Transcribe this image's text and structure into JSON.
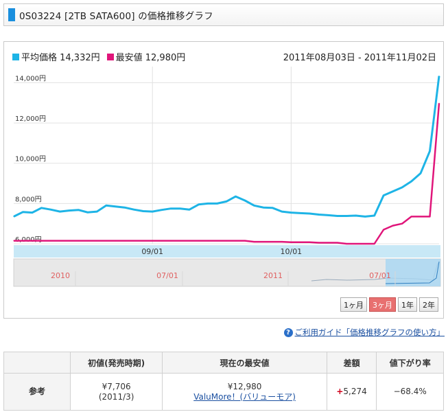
{
  "header": {
    "title": "0S03224 [2TB SATA600] の価格推移グラフ"
  },
  "legend": {
    "avg_label": "平均価格 14,332円",
    "min_label": "最安値 12,980円",
    "date_range": "2011年08月03日 - 2011年11月02日"
  },
  "colors": {
    "avg": "#1eb4e6",
    "min": "#e0157a",
    "accent": "#1a8fde",
    "active_button": "#e87070"
  },
  "chart_data": {
    "type": "line",
    "title": "",
    "xlabel": "",
    "ylabel": "",
    "x_ticks": [
      "09/01",
      "10/01"
    ],
    "y_ticks": [
      "6,000円",
      "8,000円",
      "10,000円",
      "12,000円",
      "14,000円"
    ],
    "ylim": [
      6000,
      14800
    ],
    "grid": true,
    "x": [
      "08/03",
      "08/05",
      "08/07",
      "08/09",
      "08/11",
      "08/13",
      "08/15",
      "08/17",
      "08/19",
      "08/21",
      "08/23",
      "08/25",
      "08/27",
      "08/29",
      "08/31",
      "09/02",
      "09/04",
      "09/06",
      "09/08",
      "09/10",
      "09/12",
      "09/14",
      "09/16",
      "09/18",
      "09/20",
      "09/22",
      "09/24",
      "09/26",
      "09/28",
      "09/30",
      "10/02",
      "10/04",
      "10/06",
      "10/08",
      "10/10",
      "10/12",
      "10/14",
      "10/16",
      "10/18",
      "10/20",
      "10/22",
      "10/24",
      "10/26",
      "10/28",
      "10/30",
      "11/01",
      "11/02"
    ],
    "series": [
      {
        "name": "平均価格",
        "values": [
          7350,
          7580,
          7550,
          7780,
          7700,
          7600,
          7650,
          7680,
          7560,
          7600,
          7900,
          7850,
          7800,
          7700,
          7620,
          7600,
          7680,
          7750,
          7750,
          7700,
          7950,
          8000,
          8000,
          8100,
          8350,
          8150,
          7900,
          7800,
          7780,
          7600,
          7550,
          7520,
          7500,
          7450,
          7420,
          7380,
          7380,
          7400,
          7350,
          7400,
          8400,
          8600,
          8800,
          9100,
          9500,
          10600,
          14332
        ]
      },
      {
        "name": "最安値",
        "values": [
          6150,
          6150,
          6150,
          6150,
          6150,
          6150,
          6150,
          6150,
          6150,
          6150,
          6150,
          6150,
          6150,
          6150,
          6150,
          6150,
          6150,
          6150,
          6150,
          6150,
          6150,
          6150,
          6150,
          6150,
          6150,
          6150,
          6100,
          6100,
          6100,
          6100,
          6080,
          6080,
          6080,
          6050,
          6050,
          6050,
          6000,
          6000,
          6000,
          6000,
          6700,
          6900,
          7000,
          7350,
          7350,
          7350,
          12980
        ]
      }
    ]
  },
  "navigator": {
    "labels": [
      "2010",
      "07/01",
      "2011",
      "07/01"
    ]
  },
  "period_buttons": [
    "1ヶ月",
    "3ヶ月",
    "1年",
    "2年"
  ],
  "active_period": "3ヶ月",
  "guide": {
    "text": "ご利用ガイド「価格推移グラフの使い方」"
  },
  "table": {
    "row_header": "参考",
    "headers": [
      "初値(発売時期)",
      "現在の最安値",
      "差額",
      "値下がり率"
    ],
    "initial_price": "¥7,706",
    "initial_date": "(2011/3)",
    "current_min": "¥12,980",
    "shop_name": "ValuMore！(バリューモア)",
    "diff_sign": "+",
    "diff_value": "5,274",
    "drop_rate": "−68.4%"
  }
}
